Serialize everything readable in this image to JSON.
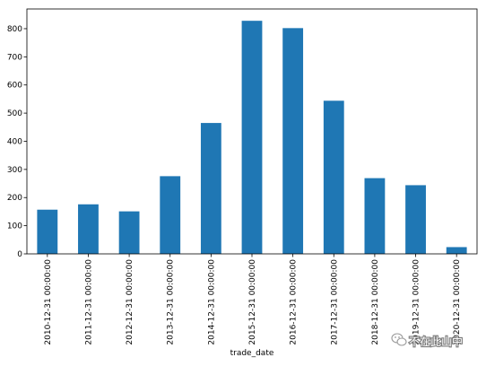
{
  "chart_data": {
    "type": "bar",
    "title": "",
    "xlabel": "trade_date",
    "ylabel": "",
    "categories": [
      "2010-12-31 00:00:00",
      "2011-12-31 00:00:00",
      "2012-12-31 00:00:00",
      "2013-12-31 00:00:00",
      "2014-12-31 00:00:00",
      "2015-12-31 00:00:00",
      "2016-12-31 00:00:00",
      "2017-12-31 00:00:00",
      "2018-12-31 00:00:00",
      "2019-12-31 00:00:00",
      "2020-12-31 00:00:00"
    ],
    "values": [
      157,
      176,
      151,
      276,
      465,
      828,
      802,
      544,
      269,
      244,
      24
    ],
    "ylim": [
      0,
      870
    ],
    "yticks": [
      0,
      100,
      200,
      300,
      400,
      500,
      600,
      700,
      800
    ],
    "bar_color": "#1f77b4",
    "grid": false,
    "legend": "none"
  },
  "watermark": {
    "text": "不在此山中",
    "icon": "wechat-bubble-icon"
  }
}
